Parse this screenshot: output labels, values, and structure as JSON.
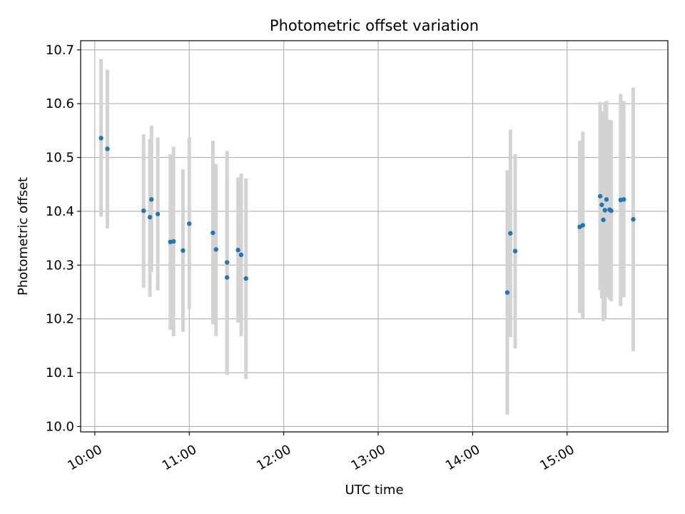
{
  "chart_data": {
    "type": "scatter",
    "title": "Photometric offset variation",
    "xlabel": "UTC time",
    "ylabel": "Photometric offset",
    "xlim": [
      "09:51",
      "16:04"
    ],
    "ylim": [
      9.99,
      10.717
    ],
    "grid": true,
    "x_ticks": [
      "10:00",
      "11:00",
      "12:00",
      "13:00",
      "14:00",
      "15:00"
    ],
    "y_ticks": [
      10.0,
      10.1,
      10.2,
      10.3,
      10.4,
      10.5,
      10.6,
      10.7
    ],
    "colors": {
      "points": "#1f77b4",
      "errorbars": "#d3d3d3",
      "grid": "#b0b0b0"
    },
    "points": [
      {
        "time": "10:04",
        "value": 10.536,
        "err_low": 10.39,
        "err_high": 10.683
      },
      {
        "time": "10:08",
        "value": 10.516,
        "err_low": 10.368,
        "err_high": 10.663
      },
      {
        "time": "10:31",
        "value": 10.401,
        "err_low": 10.258,
        "err_high": 10.543
      },
      {
        "time": "10:35",
        "value": 10.389,
        "err_low": 10.241,
        "err_high": 10.535
      },
      {
        "time": "10:36",
        "value": 10.422,
        "err_low": 10.287,
        "err_high": 10.559
      },
      {
        "time": "10:40",
        "value": 10.395,
        "err_low": 10.253,
        "err_high": 10.537
      },
      {
        "time": "10:48",
        "value": 10.343,
        "err_low": 10.18,
        "err_high": 10.506
      },
      {
        "time": "10:50",
        "value": 10.344,
        "err_low": 10.168,
        "err_high": 10.52
      },
      {
        "time": "10:56",
        "value": 10.327,
        "err_low": 10.176,
        "err_high": 10.478
      },
      {
        "time": "11:00",
        "value": 10.377,
        "err_low": 10.218,
        "err_high": 10.537
      },
      {
        "time": "11:15",
        "value": 10.36,
        "err_low": 10.19,
        "err_high": 10.531
      },
      {
        "time": "11:17",
        "value": 10.329,
        "err_low": 10.168,
        "err_high": 10.488
      },
      {
        "time": "11:24",
        "value": 10.305,
        "err_low": 10.096,
        "err_high": 10.512
      },
      {
        "time": "11:24",
        "value": 10.277,
        "err_low": 10.096,
        "err_high": 10.46
      },
      {
        "time": "11:31",
        "value": 10.328,
        "err_low": 10.193,
        "err_high": 10.463
      },
      {
        "time": "11:33",
        "value": 10.319,
        "err_low": 10.168,
        "err_high": 10.47
      },
      {
        "time": "11:36",
        "value": 10.275,
        "err_low": 10.088,
        "err_high": 10.461
      },
      {
        "time": "14:22",
        "value": 10.249,
        "err_low": 10.022,
        "err_high": 10.476
      },
      {
        "time": "14:24",
        "value": 10.359,
        "err_low": 10.166,
        "err_high": 10.552
      },
      {
        "time": "14:27",
        "value": 10.326,
        "err_low": 10.145,
        "err_high": 10.506
      },
      {
        "time": "15:08",
        "value": 10.371,
        "err_low": 10.211,
        "err_high": 10.531
      },
      {
        "time": "15:10",
        "value": 10.374,
        "err_low": 10.2,
        "err_high": 10.548
      },
      {
        "time": "15:21",
        "value": 10.428,
        "err_low": 10.253,
        "err_high": 10.603
      },
      {
        "time": "15:22",
        "value": 10.412,
        "err_low": 10.238,
        "err_high": 10.585
      },
      {
        "time": "15:23",
        "value": 10.384,
        "err_low": 10.196,
        "err_high": 10.573
      },
      {
        "time": "15:24",
        "value": 10.402,
        "err_low": 10.201,
        "err_high": 10.603
      },
      {
        "time": "15:25",
        "value": 10.422,
        "err_low": 10.24,
        "err_high": 10.605
      },
      {
        "time": "15:27",
        "value": 10.403,
        "err_low": 10.236,
        "err_high": 10.57
      },
      {
        "time": "15:28",
        "value": 10.401,
        "err_low": 10.233,
        "err_high": 10.569
      },
      {
        "time": "15:34",
        "value": 10.421,
        "err_low": 10.224,
        "err_high": 10.618
      },
      {
        "time": "15:36",
        "value": 10.422,
        "err_low": 10.24,
        "err_high": 10.605
      },
      {
        "time": "15:42",
        "value": 10.385,
        "err_low": 10.14,
        "err_high": 10.63
      }
    ]
  }
}
